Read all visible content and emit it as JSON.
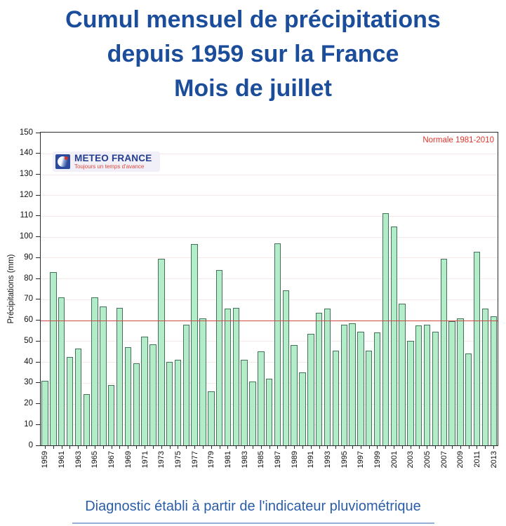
{
  "page": {
    "title_lines": [
      "Cumul mensuel de précipitations",
      "depuis 1959 sur la France",
      "Mois de juillet"
    ],
    "caption": "Diagnostic établi à partir de l'indicateur pluviométrique"
  },
  "logo": {
    "name": "METEO FRANCE",
    "tagline": "Toujours un temps d'avance"
  },
  "colors": {
    "title_blue": "#1b4d9b",
    "caption_blue": "#2a5da9",
    "bar_fill": "#b2ecc8",
    "bar_border": "#44715a",
    "normal_line_red": "#cc4a42",
    "normal_label_red": "#e0352c",
    "gridline_pink": "#f6e8e6",
    "axis_black": "#2a2a2a"
  },
  "chart_data": {
    "type": "bar",
    "title": "Cumul mensuel de précipitations depuis 1959 sur la France — Mois de juillet",
    "xlabel": "",
    "ylabel": "Précipitations (mm)",
    "ylim": [
      0,
      150
    ],
    "ytick_step": 10,
    "xtick_label_every": 2,
    "grid": "faint horizontal gridlines every 10 mm",
    "legend_position": "none",
    "normal_line": {
      "label": "Normale 1981-2010",
      "value": 60
    },
    "categories": [
      1959,
      1960,
      1961,
      1962,
      1963,
      1964,
      1965,
      1966,
      1967,
      1968,
      1969,
      1970,
      1971,
      1972,
      1973,
      1974,
      1975,
      1976,
      1977,
      1978,
      1979,
      1980,
      1981,
      1982,
      1983,
      1984,
      1985,
      1986,
      1987,
      1988,
      1989,
      1990,
      1991,
      1992,
      1993,
      1994,
      1995,
      1996,
      1997,
      1998,
      1999,
      2000,
      2001,
      2002,
      2003,
      2004,
      2005,
      2006,
      2007,
      2008,
      2009,
      2010,
      2011,
      2012,
      2013
    ],
    "values": [
      31,
      83,
      71,
      42.5,
      46.5,
      24.5,
      71,
      66.5,
      29,
      66,
      47,
      39.5,
      52,
      48.5,
      89.5,
      40,
      41,
      58,
      96.5,
      61,
      26,
      84,
      65.5,
      66,
      41,
      30.5,
      45,
      32,
      97,
      74.5,
      48,
      35,
      53.5,
      63.5,
      65.5,
      45.5,
      58,
      58.5,
      54.5,
      45.5,
      54,
      111.5,
      105,
      68,
      50,
      57.5,
      58,
      54.5,
      89.5,
      59.5,
      61,
      44,
      93,
      65.5,
      62
    ]
  }
}
